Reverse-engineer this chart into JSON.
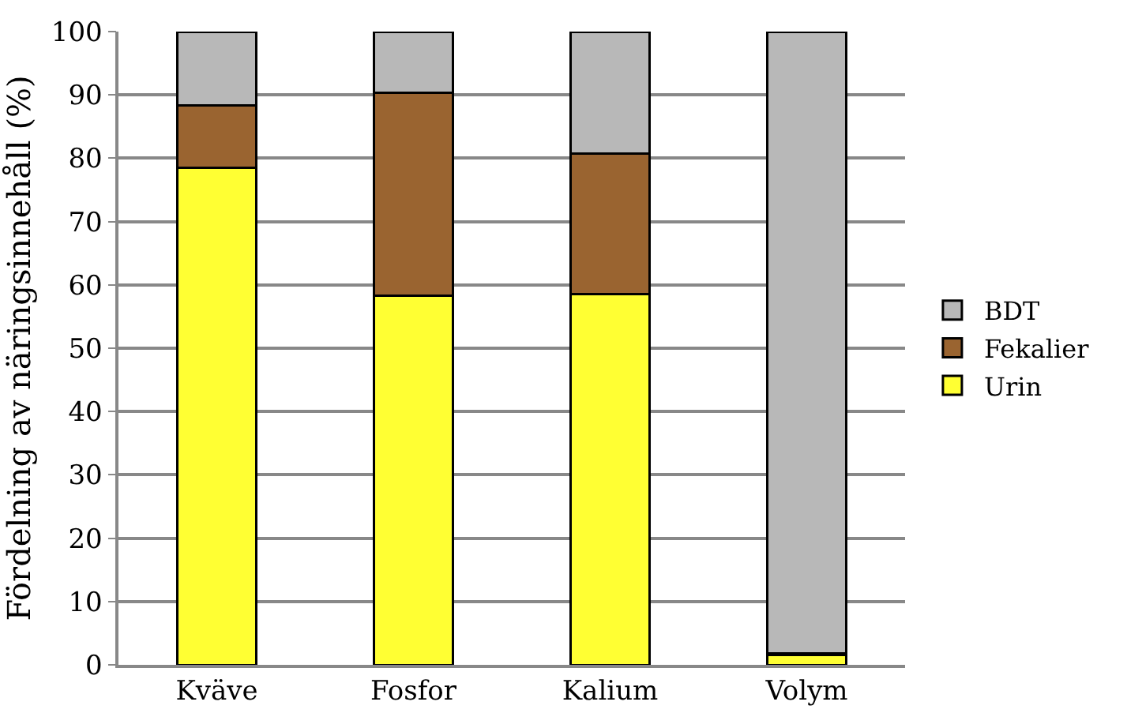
{
  "chart_data": {
    "type": "bar",
    "stacked": true,
    "ylabel": "Fördelning av näringsinnehåll (%)",
    "categories": [
      "Kväve",
      "Fosfor",
      "Kalium",
      "Volym"
    ],
    "series": [
      {
        "name": "Urin",
        "color": "#ffff33",
        "values": [
          78.5,
          58.3,
          58.5,
          1.5
        ]
      },
      {
        "name": "Fekalier",
        "color": "#9a6430",
        "values": [
          9.8,
          32,
          22.2,
          0.3
        ]
      },
      {
        "name": "BDT",
        "color": "#b8b8b8",
        "values": [
          11.7,
          9.7,
          19.3,
          98.2
        ]
      }
    ],
    "ylim": [
      0,
      100
    ],
    "yticks": [
      0,
      10,
      20,
      30,
      40,
      50,
      60,
      70,
      80,
      90,
      100
    ],
    "grid": "y",
    "legend": "right"
  }
}
